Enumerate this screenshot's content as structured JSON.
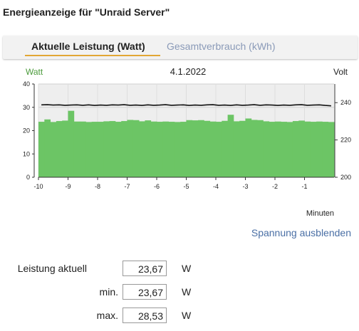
{
  "page": {
    "title": "Energieanzeige für \"Unraid Server\""
  },
  "tabs": [
    {
      "label": "Aktuelle Leistung (Watt)",
      "active": true
    },
    {
      "label": "Gesamtverbrauch (kWh)",
      "active": false
    }
  ],
  "chart_data": {
    "type": "bar",
    "date": "4.1.2022",
    "left_axis_label": "Watt",
    "right_axis_label": "Volt",
    "xlabel": "Minuten",
    "ylim": [
      0,
      40
    ],
    "y2lim": [
      200,
      250
    ],
    "yticks": [
      0,
      10,
      20,
      30,
      40
    ],
    "y2ticks": [
      200,
      220,
      240
    ],
    "xlim": [
      -10,
      0
    ],
    "xticks": [
      -10,
      -9,
      -8,
      -7,
      -6,
      -5,
      -4,
      -3,
      -2,
      -1
    ],
    "bar_color": "#6cc565",
    "voltage_color": "#111111",
    "series": [
      {
        "name": "Watt",
        "values": [
          23.8,
          24.8,
          23.7,
          24.1,
          24.3,
          28.5,
          23.9,
          23.9,
          23.7,
          23.8,
          23.8,
          24.0,
          24.1,
          23.8,
          24.1,
          24.6,
          24.5,
          24.0,
          24.4,
          23.9,
          23.8,
          23.9,
          23.8,
          23.7,
          23.8,
          24.5,
          24.4,
          24.5,
          24.2,
          23.9,
          23.8,
          24.2,
          26.8,
          24.0,
          24.2,
          25.2,
          24.6,
          24.5,
          24.0,
          23.8,
          23.9,
          23.8,
          23.7,
          24.1,
          24.3,
          23.9,
          23.8,
          23.9,
          23.8,
          23.7
        ]
      },
      {
        "name": "Volt",
        "values": [
          238.8,
          238.9,
          238.7,
          238.8,
          238.6,
          238.7,
          238.8,
          238.6,
          238.8,
          238.5,
          238.7,
          238.6,
          238.8,
          238.7,
          238.9,
          238.6,
          238.7,
          238.5,
          238.8,
          238.6,
          238.7,
          238.9,
          238.6,
          238.7,
          238.8,
          238.5,
          238.7,
          238.6,
          238.8,
          238.9,
          238.6,
          238.7,
          238.5,
          238.8,
          238.6,
          238.7,
          238.9,
          238.6,
          238.8,
          238.7,
          238.5,
          238.7,
          238.6,
          238.8,
          238.9,
          238.6,
          238.7,
          238.8,
          238.5,
          238.3
        ]
      }
    ]
  },
  "toggle_voltage_label": "Spannung ausblenden",
  "stats": [
    {
      "label": "Leistung aktuell",
      "value": "23,67",
      "unit": "W"
    },
    {
      "label": "min.",
      "value": "23,67",
      "unit": "W"
    },
    {
      "label": "max.",
      "value": "28,53",
      "unit": "W"
    }
  ]
}
